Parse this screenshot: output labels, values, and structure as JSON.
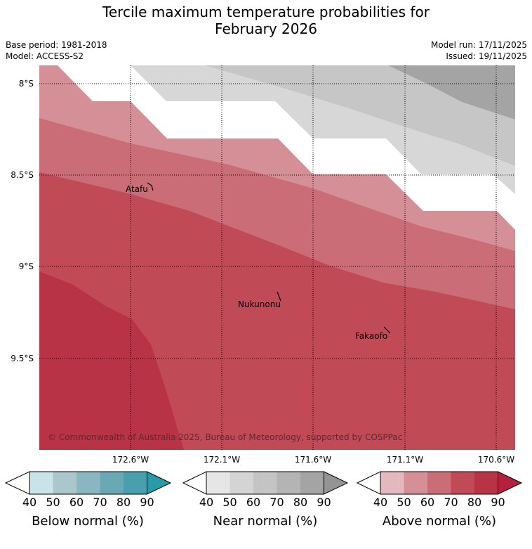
{
  "header": {
    "title_line1": "Tercile maximum temperature probabilities for",
    "title_line2": "February 2026",
    "base_period": "Base period: 1981-2018",
    "model": "Model: ACCESS-S2",
    "model_run": "Model run: 17/11/2025",
    "issued": "Issued: 19/11/2025"
  },
  "map": {
    "lat_labels": [
      "8°S",
      "8.5°S",
      "9°S",
      "9.5°S"
    ],
    "lon_labels": [
      "172.6°W",
      "172.1°W",
      "171.6°W",
      "171.1°W",
      "170.6°W"
    ],
    "places": [
      "Atafu",
      "Nukunonu",
      "Fakaofo"
    ],
    "copyright": "© Commonwealth of Australia 2025, Bureau of Meteorology, supported by COSPPac"
  },
  "legends": [
    {
      "name": "Below normal (%)",
      "ticks": [
        "40",
        "50",
        "60",
        "70",
        "80",
        "90"
      ],
      "colors": [
        "#c9e3e9",
        "#a9c7cd",
        "#89b7c1",
        "#69a9b5",
        "#499fae",
        "#299aa8"
      ]
    },
    {
      "name": "Near normal (%)",
      "ticks": [
        "40",
        "50",
        "60",
        "70",
        "80",
        "90"
      ],
      "colors": [
        "#e6e6e6",
        "#d4d4d4",
        "#c4c4c4",
        "#b4b4b4",
        "#a4a4a4",
        "#949494"
      ]
    },
    {
      "name": "Above normal (%)",
      "ticks": [
        "40",
        "50",
        "60",
        "70",
        "80",
        "90"
      ],
      "colors": [
        "#e3b8bf",
        "#d49096",
        "#cb6d76",
        "#c04a56",
        "#b93346",
        "#b5213d"
      ]
    }
  ],
  "colors": {
    "nn_1": "#d7d7d7",
    "nn_2": "#c6c6c6",
    "nn_3": "#a4a4a4",
    "an_1": "#d49096",
    "an_2": "#cb6d76",
    "an_3": "#c04a56",
    "an_4": "#b93346"
  }
}
